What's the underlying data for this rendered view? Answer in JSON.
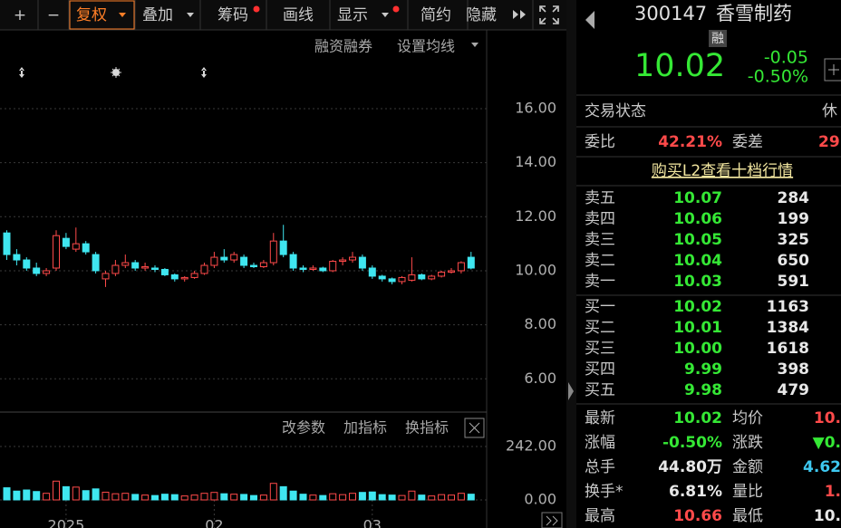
{
  "toolbar": {
    "buttons": [
      "+",
      "−",
      "复权",
      "叠加",
      "筹码",
      "画线",
      "显示",
      "简约",
      "隐藏"
    ]
  },
  "chart_menu": [
    "融资融券",
    "设置均线"
  ],
  "indicator_menu": [
    "改参数",
    "加指标",
    "换指标"
  ],
  "chart_data": {
    "type": "candlestick",
    "up_color": "#ff4a4a",
    "down_color": "#3fe6f0",
    "open": [
      11.4,
      10.6,
      10.4,
      10.1,
      9.9,
      10.1,
      11.2,
      10.8,
      11.0,
      10.6,
      9.7,
      9.9,
      10.2,
      10.3,
      10.1,
      10.1,
      10.05,
      9.85,
      9.7,
      9.75,
      9.9,
      10.2,
      10.5,
      10.4,
      10.5,
      10.2,
      10.15,
      10.3,
      11.1,
      10.6,
      10.1,
      10.05,
      10.1,
      10.0,
      10.35,
      10.4,
      10.5,
      10.1,
      9.8,
      9.7,
      9.6,
      9.65,
      9.85,
      9.7,
      9.8,
      9.95,
      10.0,
      10.5
    ],
    "high": [
      11.5,
      10.8,
      10.5,
      10.3,
      10.1,
      11.5,
      11.4,
      11.6,
      11.1,
      10.7,
      10.0,
      10.4,
      10.6,
      10.4,
      10.3,
      10.2,
      10.1,
      9.9,
      9.8,
      10.0,
      10.3,
      10.7,
      10.8,
      10.7,
      10.6,
      10.3,
      10.4,
      11.4,
      11.7,
      10.7,
      10.2,
      10.2,
      10.15,
      10.4,
      10.5,
      10.7,
      10.6,
      10.2,
      9.85,
      9.75,
      9.8,
      10.5,
      9.9,
      9.85,
      10.0,
      10.1,
      10.35,
      10.7
    ],
    "low": [
      10.4,
      10.2,
      10.0,
      9.8,
      9.8,
      10.0,
      10.8,
      10.7,
      10.6,
      9.9,
      9.4,
      9.8,
      10.1,
      10.0,
      10.0,
      9.95,
      9.8,
      9.6,
      9.6,
      9.7,
      9.85,
      10.1,
      10.3,
      10.3,
      10.1,
      10.1,
      10.1,
      10.2,
      10.5,
      10.0,
      9.95,
      10.0,
      9.95,
      9.95,
      10.2,
      10.3,
      10.0,
      9.7,
      9.6,
      9.5,
      9.5,
      9.6,
      9.65,
      9.65,
      9.75,
      9.9,
      9.9,
      10.05
    ],
    "close": [
      10.6,
      10.4,
      10.1,
      9.9,
      10.0,
      11.3,
      10.9,
      11.0,
      10.7,
      10.0,
      9.9,
      10.2,
      10.3,
      10.1,
      10.15,
      10.05,
      9.85,
      9.7,
      9.75,
      9.9,
      10.2,
      10.5,
      10.4,
      10.6,
      10.2,
      10.15,
      10.3,
      11.1,
      10.6,
      10.1,
      10.05,
      10.1,
      10.0,
      10.35,
      10.4,
      10.5,
      10.1,
      9.8,
      9.7,
      9.6,
      9.75,
      9.85,
      9.7,
      9.8,
      9.95,
      10.0,
      10.3,
      10.1
    ],
    "volume": [
      55,
      40,
      45,
      38,
      30,
      85,
      60,
      58,
      42,
      50,
      35,
      28,
      30,
      25,
      22,
      20,
      26,
      24,
      18,
      22,
      30,
      34,
      28,
      26,
      25,
      20,
      22,
      75,
      60,
      40,
      26,
      22,
      20,
      28,
      24,
      30,
      34,
      36,
      24,
      22,
      20,
      40,
      22,
      18,
      24,
      22,
      30,
      26
    ],
    "ylim": [
      4.77,
      18.68
    ],
    "yticks": [
      {
        "value": 16,
        "label": "16.00"
      },
      {
        "value": 14,
        "label": "14.00"
      },
      {
        "value": 12,
        "label": "12.00"
      },
      {
        "value": 10,
        "label": "10.00"
      },
      {
        "value": 8,
        "label": "8.00"
      },
      {
        "value": 6,
        "label": "6.00"
      }
    ],
    "vol_ylim": [
      0,
      369
    ],
    "vol_yticks": [
      {
        "value": 242,
        "label": "242.00"
      },
      {
        "value": 0,
        "label": "0.00"
      }
    ],
    "xticks": [
      {
        "value": 6,
        "label": "2025"
      },
      {
        "value": 21,
        "label": "02"
      },
      {
        "value": 37,
        "label": "03"
      }
    ],
    "grid": true
  },
  "quote": {
    "code": "300147",
    "name": "香雪制药",
    "badge": "融",
    "price": "10.02",
    "change": "-0.05",
    "change_pct": "-0.50%"
  },
  "status": {
    "label": "交易状态",
    "value": "休"
  },
  "ratio": {
    "label": "委比",
    "value": "42.21%",
    "diff_label": "委差",
    "diff_value": "29"
  },
  "l2_link": "购买L2查看十档行情",
  "asks": [
    {
      "label": "卖五",
      "price": "10.07",
      "volume": "284"
    },
    {
      "label": "卖四",
      "price": "10.06",
      "volume": "199"
    },
    {
      "label": "卖三",
      "price": "10.05",
      "volume": "325"
    },
    {
      "label": "卖二",
      "price": "10.04",
      "volume": "650"
    },
    {
      "label": "卖一",
      "price": "10.03",
      "volume": "591"
    }
  ],
  "bids": [
    {
      "label": "买一",
      "price": "10.02",
      "volume": "1163"
    },
    {
      "label": "买二",
      "price": "10.01",
      "volume": "1384"
    },
    {
      "label": "买三",
      "price": "10.00",
      "volume": "1618"
    },
    {
      "label": "买四",
      "price": "9.99",
      "volume": "398"
    },
    {
      "label": "买五",
      "price": "9.98",
      "volume": "479"
    }
  ],
  "stats": [
    {
      "label": "最新",
      "value": "10.02",
      "color": "#35e835",
      "label2": "均价",
      "value2": "10.",
      "color2": "#ff4a4a"
    },
    {
      "label": "涨幅",
      "value": "-0.50%",
      "color": "#35e835",
      "label2": "涨跌",
      "value2": "▼0.",
      "color2": "#35e835"
    },
    {
      "label": "总手",
      "value": "44.80万",
      "color": "#e8e8e8",
      "label2": "金额",
      "value2": "4.62",
      "color2": "#3ec8f0"
    },
    {
      "label": "换手*",
      "value": "6.81%",
      "color": "#e8e8e8",
      "label2": "量比",
      "value2": "1.",
      "color2": "#ff4a4a"
    },
    {
      "label": "最高",
      "value": "10.66",
      "color": "#ff4a4a",
      "label2": "最低",
      "value2": "10.",
      "color2": "#e8e8e8"
    }
  ]
}
